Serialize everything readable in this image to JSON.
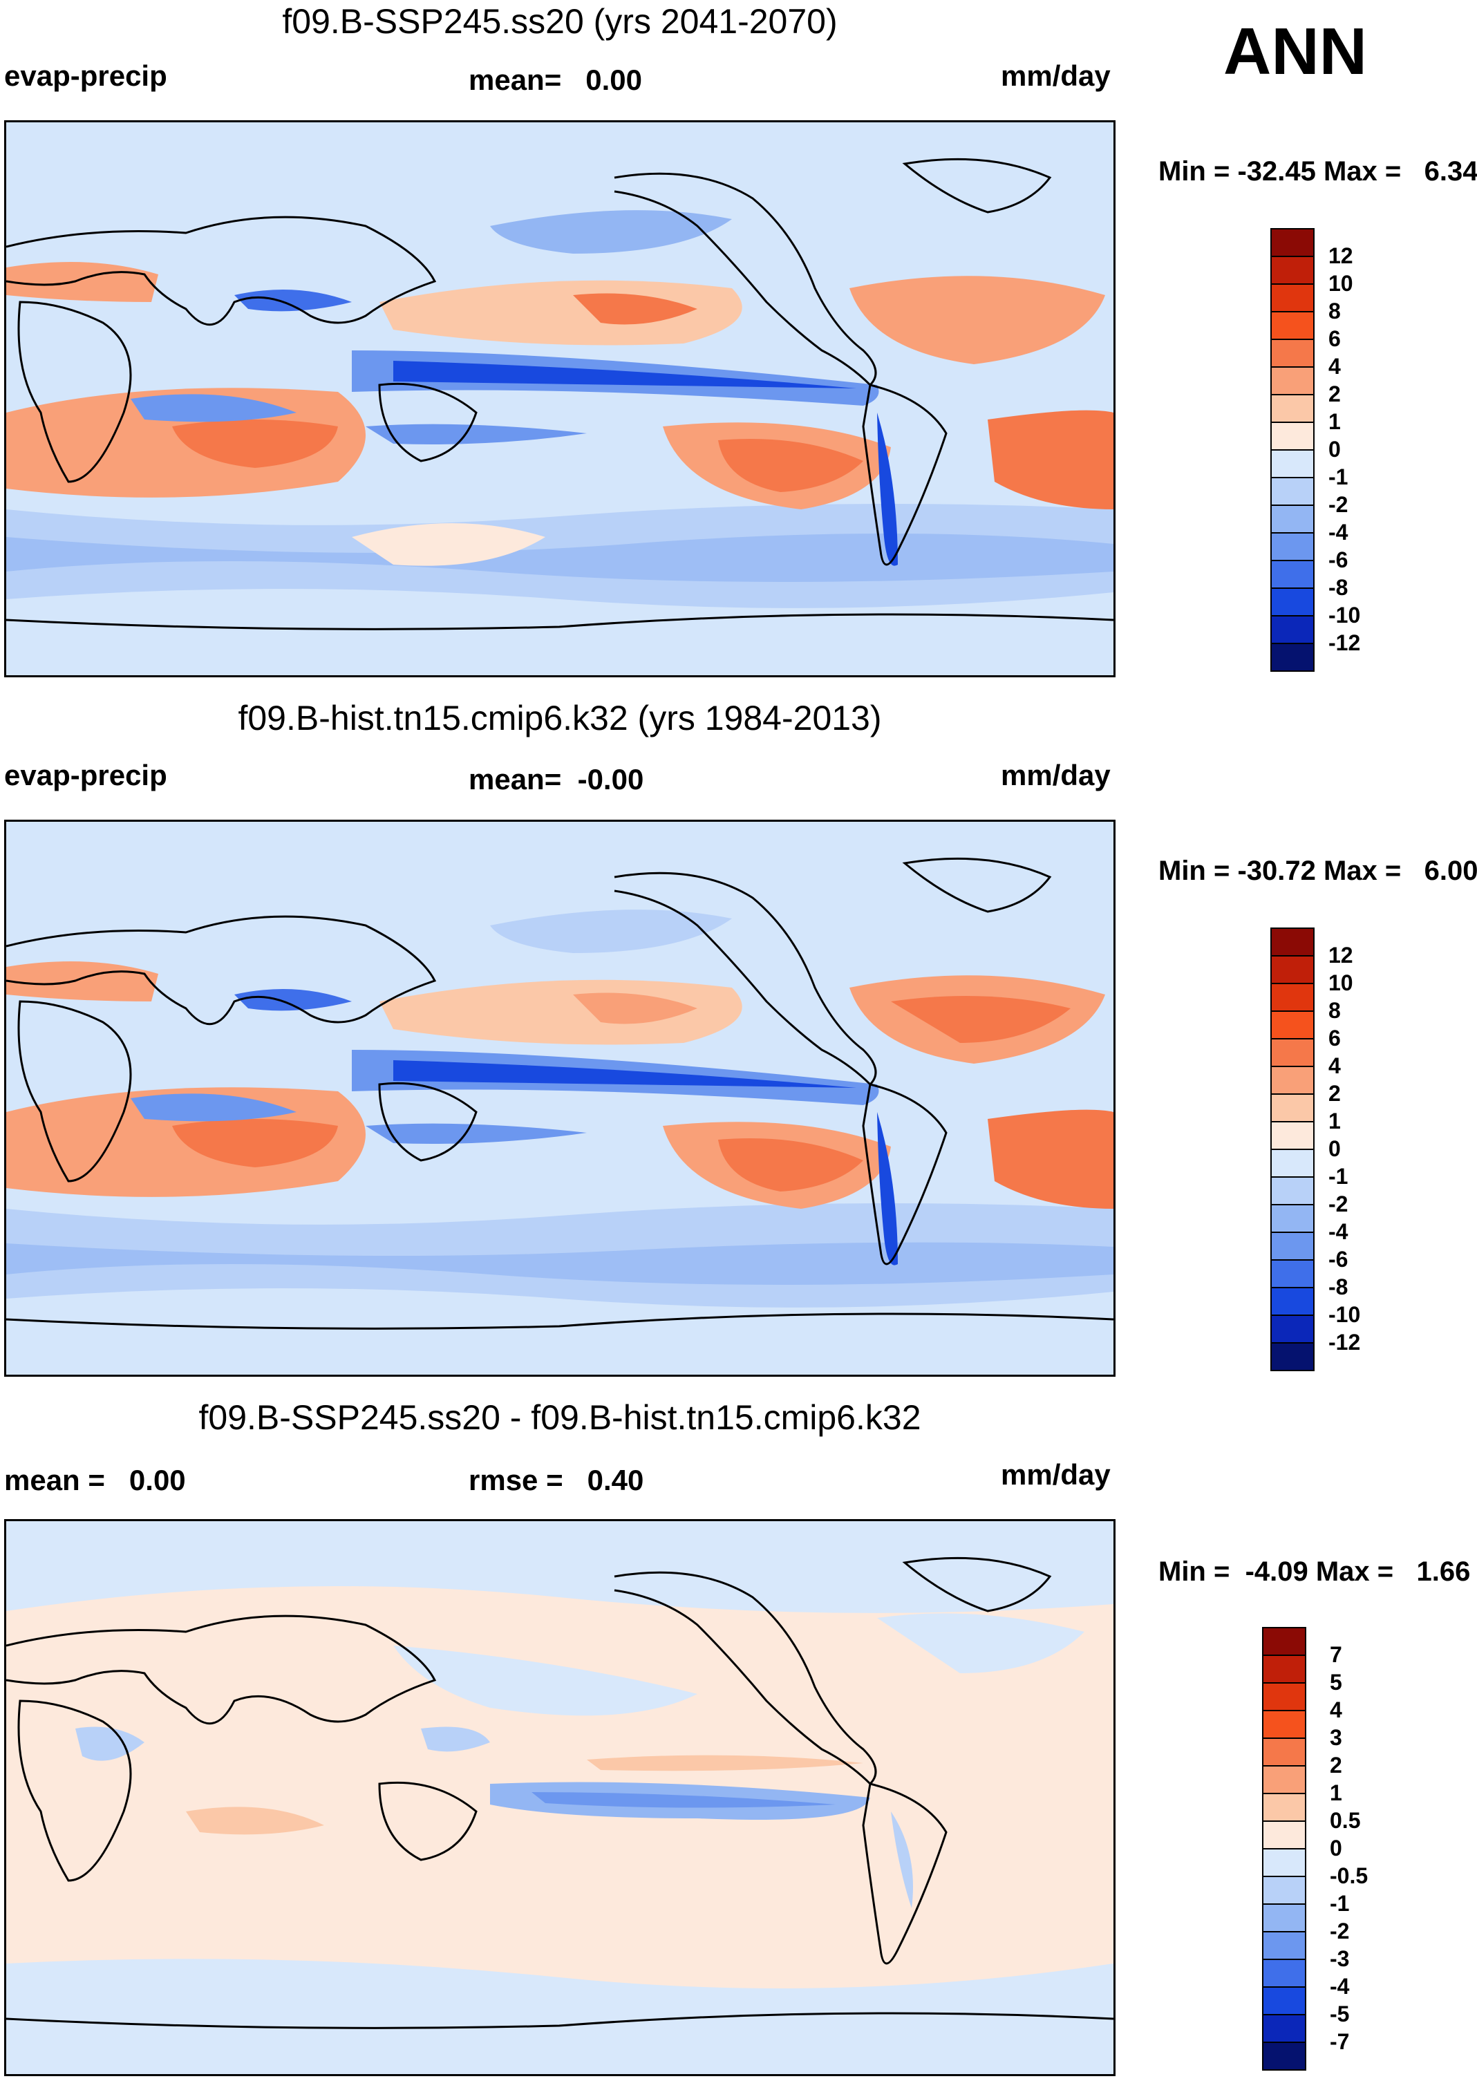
{
  "season": "ANN",
  "units": "mm/day",
  "panels": [
    {
      "title": "f09.B-SSP245.ss20 (yrs 2041-2070)",
      "left_label": "evap-precip",
      "center_label": "mean=   0.00",
      "right_label": "mm/day",
      "minmax": "Min = -32.45 Max =   6.34",
      "colorbar": {
        "levels": [
          "12",
          "10",
          "8",
          "6",
          "4",
          "2",
          "1",
          "0",
          "-1",
          "-2",
          "-4",
          "-6",
          "-8",
          "-10",
          "-12"
        ],
        "colors": [
          "#8b0a05",
          "#c01f09",
          "#e0360e",
          "#f5521d",
          "#f5784a",
          "#f9a078",
          "#fbc8a8",
          "#fde9dc",
          "#d8e8fb",
          "#b8d1f8",
          "#93b6f3",
          "#6c97ef",
          "#3f6fea",
          "#1849df",
          "#0b27b9",
          "#05126f"
        ]
      }
    },
    {
      "title": "f09.B-hist.tn15.cmip6.k32 (yrs 1984-2013)",
      "left_label": "evap-precip",
      "center_label": "mean=  -0.00",
      "right_label": "mm/day",
      "minmax": "Min = -30.72 Max =   6.00",
      "colorbar": {
        "levels": [
          "12",
          "10",
          "8",
          "6",
          "4",
          "2",
          "1",
          "0",
          "-1",
          "-2",
          "-4",
          "-6",
          "-8",
          "-10",
          "-12"
        ],
        "colors": [
          "#8b0a05",
          "#c01f09",
          "#e0360e",
          "#f5521d",
          "#f5784a",
          "#f9a078",
          "#fbc8a8",
          "#fde9dc",
          "#d8e8fb",
          "#b8d1f8",
          "#93b6f3",
          "#6c97ef",
          "#3f6fea",
          "#1849df",
          "#0b27b9",
          "#05126f"
        ]
      }
    },
    {
      "title": "f09.B-SSP245.ss20 - f09.B-hist.tn15.cmip6.k32",
      "left_label": "mean =   0.00",
      "center_label": "rmse =   0.40",
      "right_label": "mm/day",
      "minmax": "Min =  -4.09 Max =   1.66",
      "colorbar": {
        "levels": [
          "7",
          "5",
          "4",
          "3",
          "2",
          "1",
          "0.5",
          "0",
          "-0.5",
          "-1",
          "-2",
          "-3",
          "-4",
          "-5",
          "-7"
        ],
        "colors": [
          "#8b0a05",
          "#c01f09",
          "#e0360e",
          "#f5521d",
          "#f5784a",
          "#f9a078",
          "#fbc8a8",
          "#fde9dc",
          "#d8e8fb",
          "#b8d1f8",
          "#93b6f3",
          "#6c97ef",
          "#3f6fea",
          "#1849df",
          "#0b27b9",
          "#05126f"
        ]
      }
    }
  ]
}
